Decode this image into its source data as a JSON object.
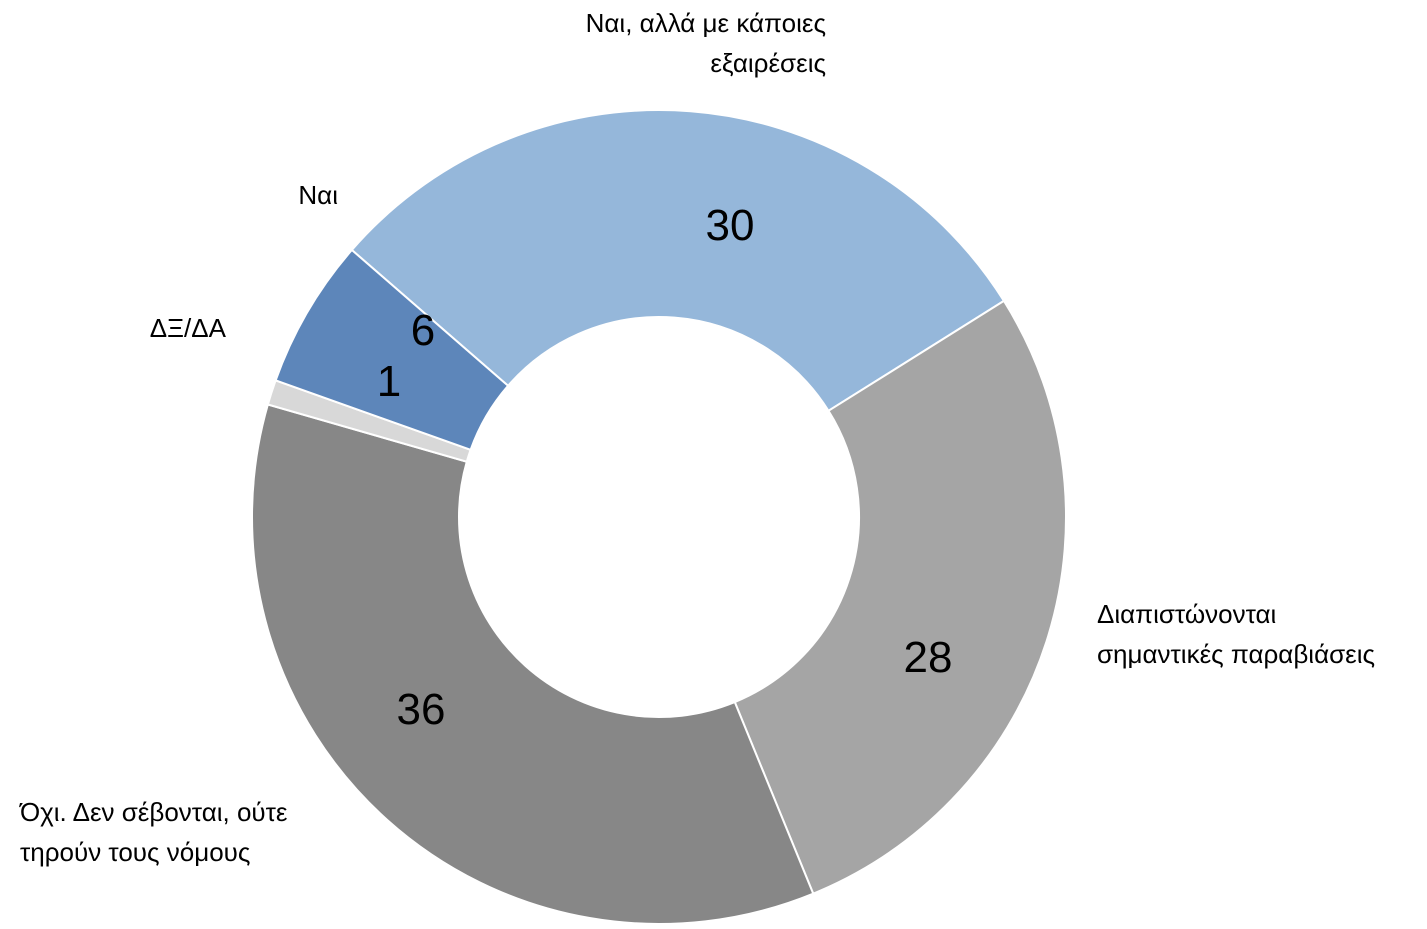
{
  "chart_data": {
    "type": "pie",
    "subtype": "donut",
    "title": "",
    "legend": "none",
    "start": "Ναι, αλλά με κάποιες εξαιρέσεις",
    "direction": "clockwise",
    "slices": [
      {
        "label": "Ναι, αλλά με κάποιες εξαιρέσεις",
        "label_lines": [
          "Ναι, αλλά με κάποιες",
          "εξαιρέσεις"
        ],
        "value": 30,
        "value_text": "30",
        "color": "#95b7da"
      },
      {
        "label": "Διαπιστώνονται σημαντικές παραβιάσεις",
        "label_lines": [
          "Διαπιστώνονται",
          "σημαντικές παραβιάσεις"
        ],
        "value": 28,
        "value_text": "28",
        "color": "#a5a5a5"
      },
      {
        "label": "Όχι. Δεν σέβονται, ούτε τηρούν τους νόμους",
        "label_lines": [
          "Όχι. Δεν σέβονται, ούτε",
          "τηρούν τους νόμους"
        ],
        "value": 36,
        "value_text": "36",
        "color": "#878787"
      },
      {
        "label": "ΔΞ/ΔΑ",
        "label_lines": [
          "ΔΞ/ΔΑ"
        ],
        "value": 1,
        "value_text": "1",
        "color": "#d8d8d8"
      },
      {
        "label": "Ναι",
        "label_lines": [
          "Ναι"
        ],
        "value": 6,
        "value_text": "6",
        "color": "#5d86ba"
      }
    ]
  }
}
